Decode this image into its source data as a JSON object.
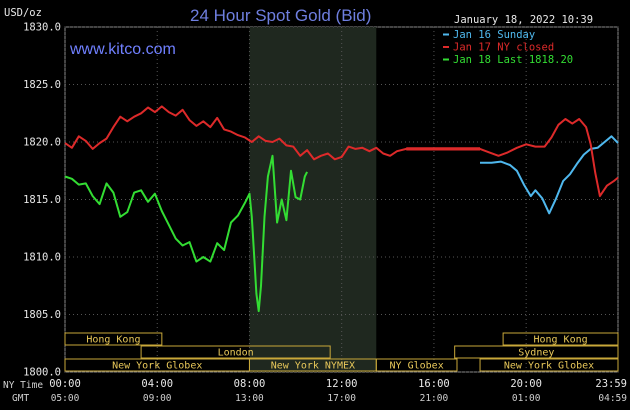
{
  "chart_data": {
    "type": "line",
    "title": "24 Hour Spot Gold (Bid)",
    "site": "www.kitco.com",
    "timestamp": "January 18, 2022 10:39",
    "ylabel": "USD/oz",
    "ylim": [
      1800,
      1830
    ],
    "y_ticks": [
      "1830.0",
      "1825.0",
      "1820.0",
      "1815.0",
      "1810.0",
      "1805.0",
      "1800.0"
    ],
    "x_tick_labels": [
      "00:00",
      "04:00",
      "08:00",
      "12:00",
      "16:00",
      "20:00",
      "23:59"
    ],
    "x_tick_hours": [
      0,
      4,
      8,
      12,
      16,
      20,
      23.983
    ],
    "gmt_tick_labels": [
      "05:00",
      "09:00",
      "13:00",
      "17:00",
      "21:00",
      "01:00",
      "04:59"
    ],
    "ny_time_label": "NY Time",
    "gmt_label": "GMT",
    "grid": true,
    "legend_position": "top-right",
    "series": [
      {
        "name": "Jan 16 Sunday",
        "color": "#4fb8ee",
        "x": [
          18.0,
          18.5,
          18.9,
          19.3,
          19.6,
          19.9,
          20.2,
          20.4,
          20.7,
          21.0,
          21.3,
          21.6,
          21.9,
          22.2,
          22.5,
          22.8,
          23.1,
          23.4,
          23.7,
          23.983
        ],
        "y": [
          1818.2,
          1818.2,
          1818.3,
          1818.0,
          1817.5,
          1816.3,
          1815.3,
          1815.8,
          1815.1,
          1813.8,
          1815.1,
          1816.6,
          1817.2,
          1818.1,
          1818.9,
          1819.4,
          1819.5,
          1820.0,
          1820.5,
          1819.9
        ]
      },
      {
        "name": "Jan 17 NY closed",
        "color": "#dd2a2a",
        "x": [
          0.0,
          0.3,
          0.6,
          0.9,
          1.2,
          1.5,
          1.8,
          2.1,
          2.4,
          2.7,
          3.0,
          3.3,
          3.6,
          3.9,
          4.2,
          4.5,
          4.8,
          5.1,
          5.4,
          5.7,
          6.0,
          6.3,
          6.6,
          6.9,
          7.2,
          7.5,
          7.8,
          8.1,
          8.4,
          8.7,
          9.0,
          9.3,
          9.6,
          9.9,
          10.2,
          10.5,
          10.8,
          11.1,
          11.4,
          11.7,
          12.0,
          12.3,
          12.6,
          12.9,
          13.2,
          13.5,
          13.8,
          14.1,
          14.4,
          14.8,
          15.2,
          15.6,
          16.0,
          16.5,
          17.0,
          17.5,
          18.0,
          18.4,
          18.8,
          19.2,
          19.6,
          20.0,
          20.4,
          20.8,
          21.1,
          21.4,
          21.7,
          22.0,
          22.3,
          22.6,
          22.8,
          23.0,
          23.2,
          23.5,
          23.8,
          23.983
        ],
        "y": [
          1819.9,
          1819.5,
          1820.5,
          1820.1,
          1819.4,
          1819.9,
          1820.3,
          1821.3,
          1822.2,
          1821.8,
          1822.2,
          1822.5,
          1823.0,
          1822.6,
          1823.1,
          1822.6,
          1822.3,
          1822.8,
          1821.9,
          1821.4,
          1821.8,
          1821.3,
          1822.1,
          1821.1,
          1820.9,
          1820.6,
          1820.4,
          1820.0,
          1820.5,
          1820.1,
          1820.0,
          1820.3,
          1819.7,
          1819.6,
          1818.8,
          1819.3,
          1818.5,
          1818.8,
          1819.0,
          1818.5,
          1818.7,
          1819.6,
          1819.4,
          1819.5,
          1819.2,
          1819.5,
          1819.0,
          1818.8,
          1819.2,
          1819.4,
          1819.4,
          1819.4,
          1819.4,
          1819.4,
          1819.4,
          1819.4,
          1819.4,
          1819.1,
          1818.8,
          1819.1,
          1819.5,
          1819.8,
          1819.6,
          1819.6,
          1820.4,
          1821.5,
          1822.0,
          1821.6,
          1822.0,
          1821.3,
          1819.8,
          1817.3,
          1815.3,
          1816.2,
          1816.6,
          1816.9
        ]
      },
      {
        "name": "Jan 18 Last 1818.20",
        "color": "#33dd33",
        "x": [
          0.0,
          0.3,
          0.6,
          0.9,
          1.2,
          1.5,
          1.8,
          2.1,
          2.4,
          2.7,
          3.0,
          3.3,
          3.6,
          3.9,
          4.2,
          4.5,
          4.8,
          5.1,
          5.4,
          5.7,
          6.0,
          6.3,
          6.6,
          6.9,
          7.2,
          7.5,
          7.8,
          8.0,
          8.1,
          8.2,
          8.3,
          8.4,
          8.5,
          8.65,
          8.8,
          9.0,
          9.2,
          9.4,
          9.6,
          9.8,
          10.0,
          10.2,
          10.4,
          10.5
        ],
        "y": [
          1817.0,
          1816.8,
          1816.3,
          1816.4,
          1815.3,
          1814.6,
          1816.4,
          1815.6,
          1813.5,
          1813.9,
          1815.6,
          1815.8,
          1814.8,
          1815.5,
          1814.0,
          1812.8,
          1811.6,
          1811.0,
          1811.3,
          1809.6,
          1810.0,
          1809.6,
          1811.2,
          1810.6,
          1813.0,
          1813.6,
          1814.7,
          1815.5,
          1813.5,
          1810.2,
          1806.8,
          1805.3,
          1807.5,
          1813.5,
          1817.0,
          1818.8,
          1813.0,
          1815.0,
          1813.2,
          1817.5,
          1815.2,
          1815.0,
          1817.0,
          1817.4
        ]
      }
    ],
    "sessions": {
      "top_row": [
        {
          "label": "Hong Kong",
          "start": 0,
          "end": 4.2
        },
        {
          "label": "Hong Kong",
          "start": 19.0,
          "end": 23.983
        }
      ],
      "middle_row": [
        {
          "label": "London",
          "start": 3.3,
          "end": 11.5
        },
        {
          "label": "Sydney",
          "start": 16.9,
          "end": 23.983
        }
      ],
      "bottom_row": [
        {
          "label": "New York Globex",
          "start": 0,
          "end": 8.0
        },
        {
          "label": "New York NYMEX",
          "start": 8.0,
          "end": 13.5
        },
        {
          "label": "New York Globex",
          "start": 18.0,
          "end": 23.983
        },
        {
          "label": "NY Globex",
          "start": 13.5,
          "end": 17.0
        }
      ]
    },
    "highlight_band": {
      "start": 8.0,
      "end": 13.5
    }
  }
}
